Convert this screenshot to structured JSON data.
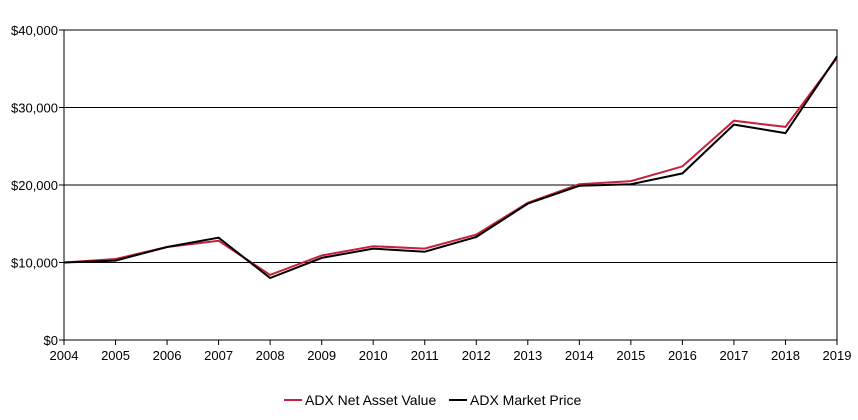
{
  "chart_data": {
    "type": "line",
    "title": "",
    "xlabel": "",
    "ylabel": "",
    "x": [
      "2004",
      "2005",
      "2006",
      "2007",
      "2008",
      "2009",
      "2010",
      "2011",
      "2012",
      "2013",
      "2014",
      "2015",
      "2016",
      "2017",
      "2018",
      "2019"
    ],
    "ylim": [
      0,
      40000
    ],
    "yticks": [
      0,
      10000,
      20000,
      30000,
      40000
    ],
    "ytick_labels": [
      "$0",
      "$10,000",
      "$20,000",
      "$30,000",
      "$40,000"
    ],
    "grid": "horizontal",
    "legend_position": "bottom-center",
    "series": [
      {
        "name": "ADX Net Asset Value",
        "color": "#c8203a",
        "values": [
          10000,
          10450,
          12000,
          12800,
          8400,
          10900,
          12100,
          11800,
          13600,
          17700,
          20100,
          20500,
          22400,
          28300,
          27500,
          36400
        ]
      },
      {
        "name": "ADX Market Price",
        "color": "#000000",
        "values": [
          10000,
          10250,
          12000,
          13200,
          8000,
          10600,
          11800,
          11400,
          13300,
          17600,
          19900,
          20100,
          21500,
          27800,
          26700,
          36600
        ]
      }
    ]
  }
}
